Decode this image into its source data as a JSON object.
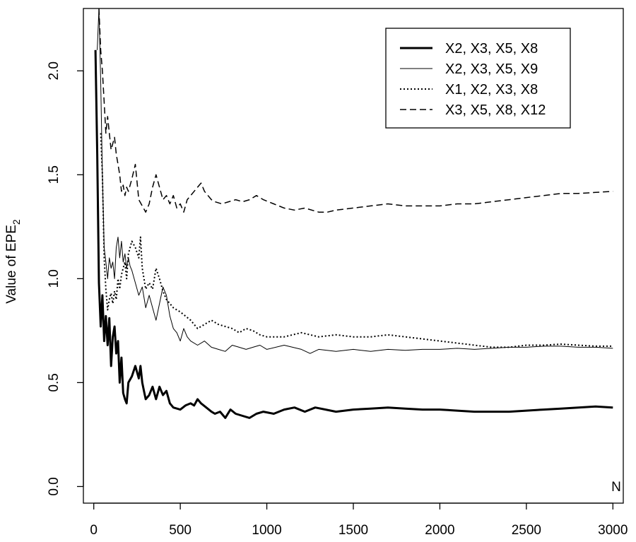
{
  "chart_data": {
    "type": "line",
    "xlabel": "N",
    "ylabel": "Value of EPE",
    "ylabel_subscript": "2",
    "xlim": [
      -60,
      3060
    ],
    "ylim": [
      -0.08,
      2.3
    ],
    "x_ticks": [
      0,
      500,
      1000,
      1500,
      2000,
      2500,
      3000
    ],
    "x_tick_labels": [
      "0",
      "500",
      "1000",
      "1500",
      "2000",
      "2500",
      "3000"
    ],
    "y_ticks": [
      0.0,
      0.5,
      1.0,
      1.5,
      2.0
    ],
    "y_tick_labels": [
      "0.0",
      "0.5",
      "1.0",
      "1.5",
      "2.0"
    ],
    "grid": false,
    "legend_position": "top-right",
    "series": [
      {
        "name": "X2, X3, X5, X8",
        "style": "thick-solid",
        "points": [
          [
            10,
            2.1
          ],
          [
            20,
            1.6
          ],
          [
            30,
            0.98
          ],
          [
            40,
            0.77
          ],
          [
            50,
            0.92
          ],
          [
            60,
            0.7
          ],
          [
            70,
            0.82
          ],
          [
            80,
            0.68
          ],
          [
            90,
            0.81
          ],
          [
            100,
            0.58
          ],
          [
            110,
            0.72
          ],
          [
            120,
            0.77
          ],
          [
            130,
            0.64
          ],
          [
            140,
            0.7
          ],
          [
            150,
            0.5
          ],
          [
            160,
            0.62
          ],
          [
            170,
            0.45
          ],
          [
            180,
            0.42
          ],
          [
            190,
            0.4
          ],
          [
            200,
            0.5
          ],
          [
            220,
            0.53
          ],
          [
            240,
            0.58
          ],
          [
            260,
            0.52
          ],
          [
            270,
            0.58
          ],
          [
            280,
            0.5
          ],
          [
            290,
            0.46
          ],
          [
            300,
            0.42
          ],
          [
            320,
            0.44
          ],
          [
            340,
            0.48
          ],
          [
            360,
            0.42
          ],
          [
            380,
            0.48
          ],
          [
            400,
            0.44
          ],
          [
            420,
            0.46
          ],
          [
            440,
            0.4
          ],
          [
            460,
            0.38
          ],
          [
            500,
            0.37
          ],
          [
            530,
            0.39
          ],
          [
            560,
            0.4
          ],
          [
            580,
            0.39
          ],
          [
            600,
            0.42
          ],
          [
            620,
            0.4
          ],
          [
            650,
            0.38
          ],
          [
            680,
            0.36
          ],
          [
            700,
            0.35
          ],
          [
            730,
            0.36
          ],
          [
            760,
            0.33
          ],
          [
            790,
            0.37
          ],
          [
            820,
            0.35
          ],
          [
            860,
            0.34
          ],
          [
            900,
            0.33
          ],
          [
            940,
            0.35
          ],
          [
            980,
            0.36
          ],
          [
            1040,
            0.35
          ],
          [
            1100,
            0.37
          ],
          [
            1160,
            0.38
          ],
          [
            1220,
            0.36
          ],
          [
            1280,
            0.38
          ],
          [
            1340,
            0.37
          ],
          [
            1400,
            0.36
          ],
          [
            1500,
            0.37
          ],
          [
            1600,
            0.375
          ],
          [
            1700,
            0.38
          ],
          [
            1800,
            0.375
          ],
          [
            1900,
            0.37
          ],
          [
            2000,
            0.37
          ],
          [
            2100,
            0.365
          ],
          [
            2200,
            0.36
          ],
          [
            2300,
            0.36
          ],
          [
            2400,
            0.36
          ],
          [
            2500,
            0.365
          ],
          [
            2600,
            0.37
          ],
          [
            2700,
            0.375
          ],
          [
            2800,
            0.38
          ],
          [
            2900,
            0.385
          ],
          [
            3000,
            0.38
          ]
        ]
      },
      {
        "name": "X2, X3, X5, X9",
        "style": "thin-solid",
        "points": [
          [
            20,
            2.1
          ],
          [
            30,
            2.3
          ],
          [
            40,
            1.95
          ],
          [
            50,
            1.5
          ],
          [
            60,
            1.15
          ],
          [
            70,
            1.08
          ],
          [
            80,
            1.0
          ],
          [
            90,
            1.1
          ],
          [
            100,
            1.05
          ],
          [
            110,
            1.08
          ],
          [
            120,
            1.0
          ],
          [
            130,
            1.15
          ],
          [
            140,
            1.2
          ],
          [
            150,
            1.1
          ],
          [
            160,
            1.18
          ],
          [
            170,
            1.08
          ],
          [
            180,
            1.12
          ],
          [
            190,
            1.05
          ],
          [
            200,
            1.1
          ],
          [
            210,
            1.06
          ],
          [
            220,
            1.04
          ],
          [
            240,
            0.98
          ],
          [
            260,
            0.92
          ],
          [
            280,
            0.96
          ],
          [
            300,
            0.86
          ],
          [
            320,
            0.92
          ],
          [
            340,
            0.86
          ],
          [
            360,
            0.8
          ],
          [
            380,
            0.88
          ],
          [
            400,
            0.96
          ],
          [
            420,
            0.92
          ],
          [
            440,
            0.82
          ],
          [
            460,
            0.76
          ],
          [
            480,
            0.74
          ],
          [
            500,
            0.7
          ],
          [
            520,
            0.76
          ],
          [
            540,
            0.72
          ],
          [
            560,
            0.7
          ],
          [
            600,
            0.68
          ],
          [
            640,
            0.7
          ],
          [
            680,
            0.67
          ],
          [
            720,
            0.66
          ],
          [
            760,
            0.65
          ],
          [
            800,
            0.68
          ],
          [
            840,
            0.67
          ],
          [
            880,
            0.66
          ],
          [
            920,
            0.67
          ],
          [
            960,
            0.68
          ],
          [
            1000,
            0.66
          ],
          [
            1100,
            0.68
          ],
          [
            1200,
            0.66
          ],
          [
            1250,
            0.64
          ],
          [
            1300,
            0.66
          ],
          [
            1400,
            0.65
          ],
          [
            1500,
            0.66
          ],
          [
            1600,
            0.65
          ],
          [
            1700,
            0.66
          ],
          [
            1800,
            0.655
          ],
          [
            1900,
            0.66
          ],
          [
            2000,
            0.66
          ],
          [
            2100,
            0.665
          ],
          [
            2200,
            0.66
          ],
          [
            2300,
            0.665
          ],
          [
            2400,
            0.67
          ],
          [
            2500,
            0.67
          ],
          [
            2600,
            0.675
          ],
          [
            2700,
            0.675
          ],
          [
            2800,
            0.67
          ],
          [
            2900,
            0.67
          ],
          [
            3000,
            0.665
          ]
        ]
      },
      {
        "name": "X1, X2, X3, X8",
        "style": "dotted",
        "points": [
          [
            40,
            1.7
          ],
          [
            50,
            1.5
          ],
          [
            60,
            1.1
          ],
          [
            70,
            0.95
          ],
          [
            80,
            0.85
          ],
          [
            90,
            0.9
          ],
          [
            100,
            0.93
          ],
          [
            110,
            0.88
          ],
          [
            120,
            0.94
          ],
          [
            130,
            0.9
          ],
          [
            140,
            1.0
          ],
          [
            150,
            0.95
          ],
          [
            160,
            1.02
          ],
          [
            170,
            1.05
          ],
          [
            180,
            1.08
          ],
          [
            190,
            1.0
          ],
          [
            200,
            1.12
          ],
          [
            220,
            1.18
          ],
          [
            240,
            1.15
          ],
          [
            260,
            1.1
          ],
          [
            270,
            1.2
          ],
          [
            280,
            1.05
          ],
          [
            300,
            0.95
          ],
          [
            320,
            0.98
          ],
          [
            340,
            0.95
          ],
          [
            360,
            1.05
          ],
          [
            380,
            1.0
          ],
          [
            400,
            0.94
          ],
          [
            420,
            0.9
          ],
          [
            440,
            0.88
          ],
          [
            460,
            0.86
          ],
          [
            480,
            0.85
          ],
          [
            500,
            0.84
          ],
          [
            530,
            0.82
          ],
          [
            560,
            0.8
          ],
          [
            600,
            0.76
          ],
          [
            640,
            0.78
          ],
          [
            680,
            0.8
          ],
          [
            720,
            0.78
          ],
          [
            760,
            0.77
          ],
          [
            800,
            0.76
          ],
          [
            840,
            0.74
          ],
          [
            880,
            0.76
          ],
          [
            920,
            0.75
          ],
          [
            960,
            0.73
          ],
          [
            1000,
            0.72
          ],
          [
            1100,
            0.72
          ],
          [
            1200,
            0.74
          ],
          [
            1300,
            0.72
          ],
          [
            1400,
            0.73
          ],
          [
            1500,
            0.72
          ],
          [
            1600,
            0.72
          ],
          [
            1700,
            0.73
          ],
          [
            1800,
            0.72
          ],
          [
            1900,
            0.71
          ],
          [
            2000,
            0.7
          ],
          [
            2100,
            0.69
          ],
          [
            2200,
            0.68
          ],
          [
            2300,
            0.67
          ],
          [
            2400,
            0.67
          ],
          [
            2500,
            0.68
          ],
          [
            2600,
            0.68
          ],
          [
            2700,
            0.685
          ],
          [
            2800,
            0.68
          ],
          [
            2900,
            0.675
          ],
          [
            3000,
            0.675
          ]
        ]
      },
      {
        "name": "X3, X5, X8, X12",
        "style": "dashed",
        "points": [
          [
            30,
            2.3
          ],
          [
            40,
            2.1
          ],
          [
            50,
            2.0
          ],
          [
            60,
            1.85
          ],
          [
            70,
            1.7
          ],
          [
            80,
            1.78
          ],
          [
            90,
            1.7
          ],
          [
            100,
            1.62
          ],
          [
            110,
            1.65
          ],
          [
            120,
            1.68
          ],
          [
            130,
            1.6
          ],
          [
            140,
            1.55
          ],
          [
            150,
            1.5
          ],
          [
            160,
            1.42
          ],
          [
            170,
            1.45
          ],
          [
            180,
            1.4
          ],
          [
            190,
            1.44
          ],
          [
            200,
            1.42
          ],
          [
            220,
            1.48
          ],
          [
            240,
            1.55
          ],
          [
            260,
            1.38
          ],
          [
            280,
            1.35
          ],
          [
            300,
            1.32
          ],
          [
            320,
            1.36
          ],
          [
            340,
            1.44
          ],
          [
            360,
            1.5
          ],
          [
            380,
            1.44
          ],
          [
            400,
            1.38
          ],
          [
            420,
            1.4
          ],
          [
            440,
            1.36
          ],
          [
            460,
            1.4
          ],
          [
            480,
            1.34
          ],
          [
            500,
            1.36
          ],
          [
            520,
            1.32
          ],
          [
            540,
            1.38
          ],
          [
            560,
            1.4
          ],
          [
            580,
            1.42
          ],
          [
            600,
            1.44
          ],
          [
            620,
            1.46
          ],
          [
            640,
            1.42
          ],
          [
            660,
            1.4
          ],
          [
            680,
            1.38
          ],
          [
            700,
            1.37
          ],
          [
            740,
            1.36
          ],
          [
            780,
            1.37
          ],
          [
            820,
            1.38
          ],
          [
            860,
            1.37
          ],
          [
            900,
            1.38
          ],
          [
            940,
            1.4
          ],
          [
            980,
            1.38
          ],
          [
            1040,
            1.36
          ],
          [
            1100,
            1.34
          ],
          [
            1160,
            1.33
          ],
          [
            1220,
            1.34
          ],
          [
            1300,
            1.32
          ],
          [
            1350,
            1.32
          ],
          [
            1400,
            1.33
          ],
          [
            1500,
            1.34
          ],
          [
            1600,
            1.35
          ],
          [
            1700,
            1.36
          ],
          [
            1800,
            1.35
          ],
          [
            1900,
            1.35
          ],
          [
            2000,
            1.35
          ],
          [
            2100,
            1.36
          ],
          [
            2200,
            1.36
          ],
          [
            2300,
            1.37
          ],
          [
            2400,
            1.38
          ],
          [
            2500,
            1.39
          ],
          [
            2600,
            1.4
          ],
          [
            2700,
            1.41
          ],
          [
            2800,
            1.41
          ],
          [
            2900,
            1.415
          ],
          [
            3000,
            1.42
          ]
        ]
      }
    ]
  }
}
